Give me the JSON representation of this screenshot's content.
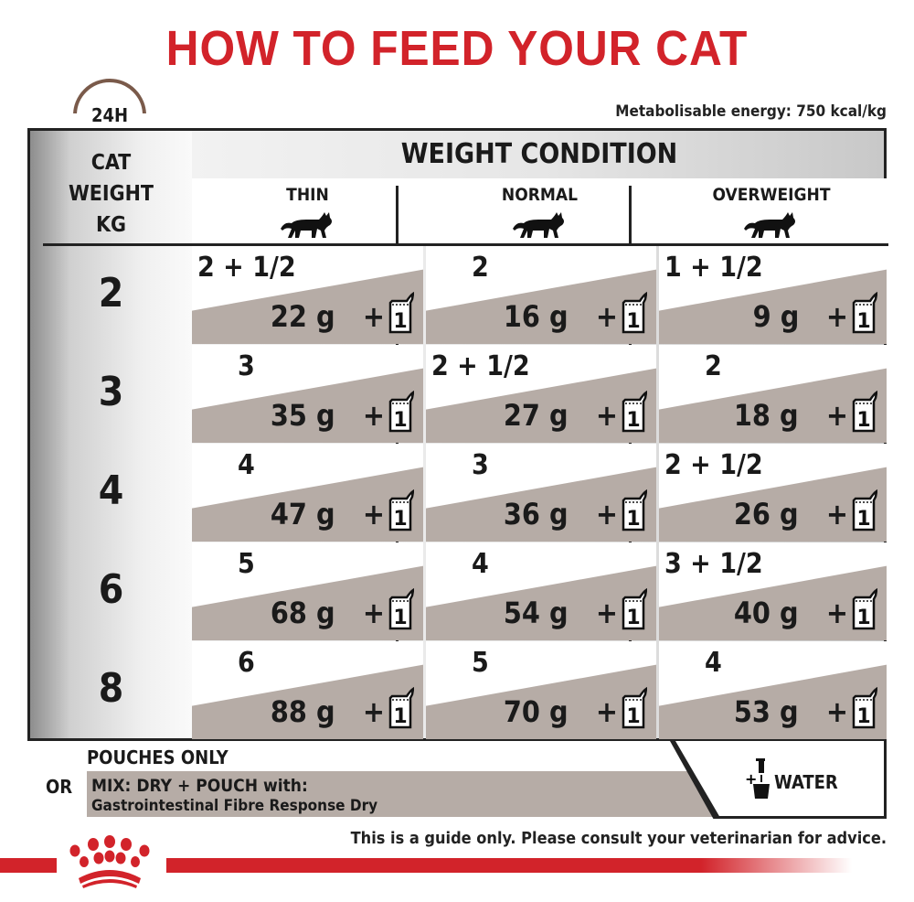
{
  "title": "HOW TO FEED YOUR CAT",
  "energy": "Metabolisable energy: 750 kcal/kg",
  "clock_label": "24H",
  "table": {
    "cat_weight_header": [
      "CAT",
      "WEIGHT",
      "KG"
    ],
    "weight_condition_header": "WEIGHT CONDITION",
    "columns": [
      "THIN",
      "NORMAL",
      "OVERWEIGHT"
    ],
    "plus": "+",
    "pouch_count": "1",
    "rows": [
      {
        "kg": "2",
        "cells": [
          {
            "pouches": "2 + 1/2",
            "dry": "22 g"
          },
          {
            "pouches": "2",
            "dry": "16 g"
          },
          {
            "pouches": "1 + 1/2",
            "dry": "9 g"
          }
        ]
      },
      {
        "kg": "3",
        "cells": [
          {
            "pouches": "3",
            "dry": "35 g"
          },
          {
            "pouches": "2 + 1/2",
            "dry": "27 g"
          },
          {
            "pouches": "2",
            "dry": "18 g"
          }
        ]
      },
      {
        "kg": "4",
        "cells": [
          {
            "pouches": "4",
            "dry": "47 g"
          },
          {
            "pouches": "3",
            "dry": "36 g"
          },
          {
            "pouches": "2 + 1/2",
            "dry": "26 g"
          }
        ]
      },
      {
        "kg": "6",
        "cells": [
          {
            "pouches": "5",
            "dry": "68 g"
          },
          {
            "pouches": "4",
            "dry": "54 g"
          },
          {
            "pouches": "3 + 1/2",
            "dry": "40 g"
          }
        ]
      },
      {
        "kg": "8",
        "cells": [
          {
            "pouches": "6",
            "dry": "88 g"
          },
          {
            "pouches": "5",
            "dry": "70 g"
          },
          {
            "pouches": "4",
            "dry": "53 g"
          }
        ]
      }
    ]
  },
  "legend": {
    "pouches_only": "POUCHES ONLY",
    "or": "OR",
    "mix_line1": "MIX: DRY + POUCH with:",
    "mix_line2": "Gastrointestinal Fibre Response Dry",
    "water_plus": "+",
    "water": "WATER"
  },
  "disclaimer": "This is a guide only. Please consult your veterinarian for advice.",
  "colors": {
    "brand_red": "#d2232a",
    "band": "#b6aca6"
  },
  "icons": [
    "clock-icon",
    "cat-icon",
    "pouch-icon",
    "water-tap-bowl-icon",
    "crown-logo"
  ]
}
